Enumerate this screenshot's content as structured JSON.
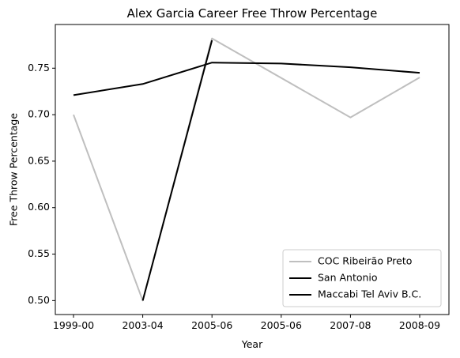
{
  "chart_data": {
    "type": "line",
    "title": "Alex Garcia  Career Free Throw Percentage",
    "xlabel": "Year",
    "ylabel": "Free Throw Percentage",
    "categories": [
      "1999-00",
      "2003-04",
      "2005-06",
      "2005-06",
      "2007-08",
      "2008-09"
    ],
    "ylim": [
      0.485,
      0.797
    ],
    "yticks": [
      0.5,
      0.55,
      0.6,
      0.65,
      0.7,
      0.75
    ],
    "ytick_labels": [
      "0.50",
      "0.55",
      "0.60",
      "0.65",
      "0.70",
      "0.75"
    ],
    "grid": false,
    "legend_position": "lower-right",
    "series": [
      {
        "name": "COC Ribeirão Preto",
        "color": "#bfbfbf",
        "values": [
          0.7,
          0.5,
          0.782,
          null,
          0.697,
          0.74
        ]
      },
      {
        "name": "San Antonio",
        "color": "#000000",
        "values": [
          0.721,
          0.733,
          0.756,
          0.755,
          0.751,
          0.745
        ]
      },
      {
        "name": "Maccabi Tel Aviv B.C.",
        "color": "#000000",
        "values": [
          null,
          0.5,
          0.78,
          null,
          null,
          null
        ]
      }
    ]
  }
}
